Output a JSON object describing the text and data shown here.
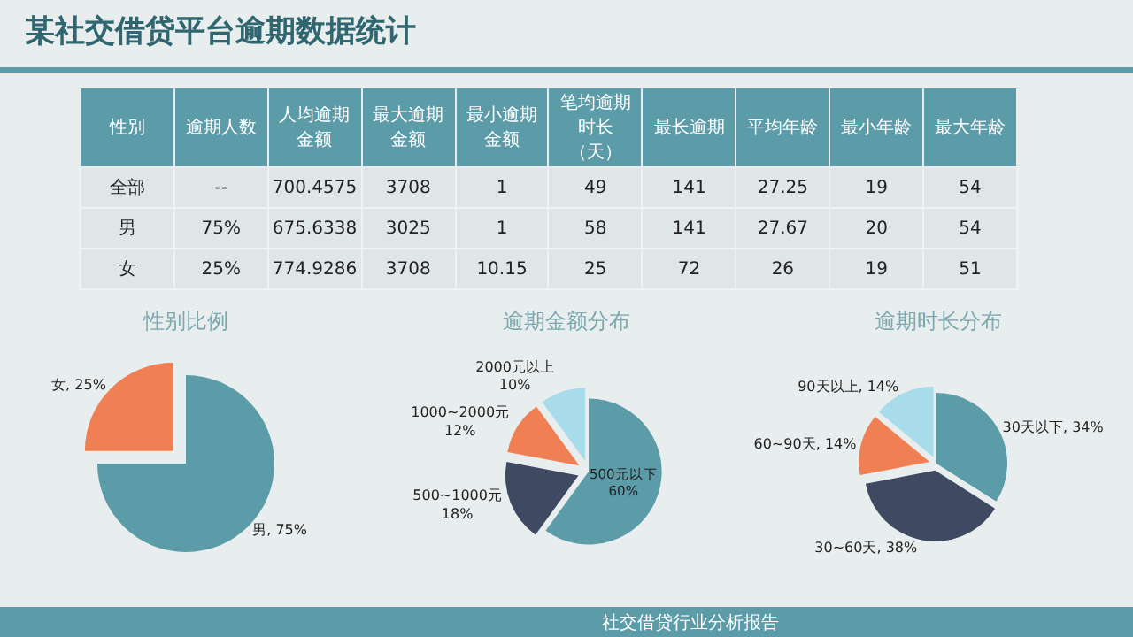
{
  "chart_data": [
    {
      "type": "other",
      "title": "某社交借贷平台逾期数据统计",
      "categories": [
        "性别",
        "逾期人数",
        "人均逾期金额",
        "最大逾期金额",
        "最小逾期金额",
        "笔均逾期时长（天）",
        "最长逾期",
        "平均年龄",
        "最小年龄",
        "最大年龄"
      ],
      "cell_labels": [
        [
          "全部",
          "--",
          "700.4575",
          "3708",
          "1",
          "49",
          "141",
          "27.25",
          "19",
          "54"
        ],
        [
          "男",
          "75%",
          "675.6338",
          "3025",
          "1",
          "58",
          "141",
          "27.67",
          "20",
          "54"
        ],
        [
          "女",
          "25%",
          "774.9286",
          "3708",
          "10.15",
          "25",
          "72",
          "26",
          "19",
          "51"
        ]
      ],
      "annotations": [
        "社交借贷行业分析报告"
      ]
    },
    {
      "type": "pie",
      "title": "性别比例",
      "categories": [
        "男",
        "女"
      ],
      "values": [
        75,
        25
      ],
      "value_labels": [
        "75%",
        "25%"
      ],
      "colors": [
        "#5b9ca8",
        "#f07f53"
      ]
    },
    {
      "type": "pie",
      "title": "逾期金额分布",
      "categories": [
        "500元以下",
        "500~1000元",
        "1000~2000元",
        "2000元以上"
      ],
      "values": [
        60,
        18,
        12,
        10
      ],
      "value_labels": [
        "60%",
        "18%",
        "12%",
        "10%"
      ],
      "colors": [
        "#5b9ca8",
        "#3f4a62",
        "#f07f53",
        "#a9dcea"
      ]
    },
    {
      "type": "pie",
      "title": "逾期时长分布",
      "categories": [
        "30天以下",
        "30~60天",
        "60~90天",
        "90天以上"
      ],
      "values": [
        34,
        38,
        14,
        14
      ],
      "value_labels": [
        "34%",
        "38%",
        "14%",
        "14%"
      ],
      "colors": [
        "#5b9ca8",
        "#3f4a62",
        "#f07f53",
        "#a9dcea"
      ]
    }
  ]
}
